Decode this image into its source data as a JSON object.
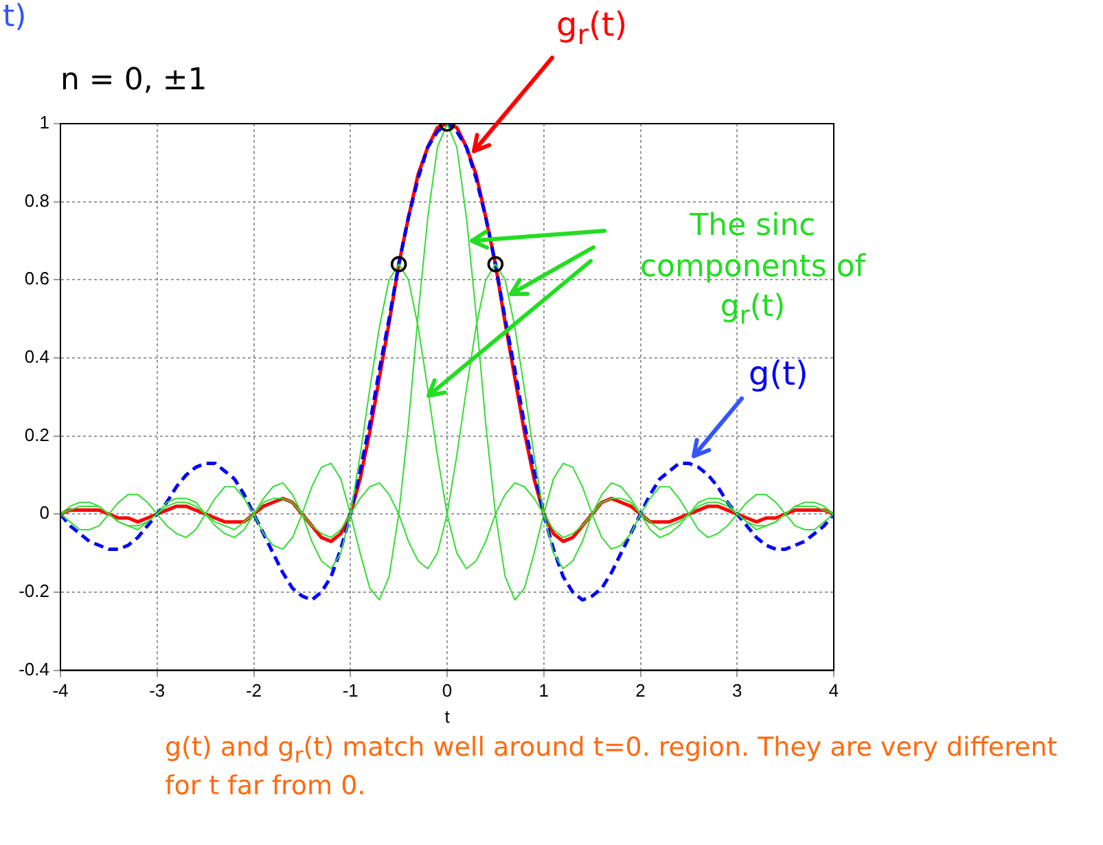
{
  "chart_data": {
    "type": "line",
    "xlabel": "t",
    "x": [
      -4,
      -3.9,
      -3.8,
      -3.7,
      -3.6,
      -3.5,
      -3.4,
      -3.3,
      -3.2,
      -3.1,
      -3,
      -2.9,
      -2.8,
      -2.7,
      -2.6,
      -2.5,
      -2.4,
      -2.3,
      -2.2,
      -2.1,
      -2,
      -1.9,
      -1.8,
      -1.7,
      -1.6,
      -1.5,
      -1.4,
      -1.3,
      -1.2,
      -1.1,
      -1,
      -0.9,
      -0.8,
      -0.7,
      -0.6,
      -0.5,
      -0.4,
      -0.3,
      -0.2,
      -0.1,
      0,
      0.1,
      0.2,
      0.3,
      0.4,
      0.5,
      0.6,
      0.7,
      0.8,
      0.9,
      1,
      1.1,
      1.2,
      1.3,
      1.4,
      1.5,
      1.6,
      1.7,
      1.8,
      1.9,
      2,
      2.1,
      2.2,
      2.3,
      2.4,
      2.5,
      2.6,
      2.7,
      2.8,
      2.9,
      3,
      3.1,
      3.2,
      3.3,
      3.4,
      3.5,
      3.6,
      3.7,
      3.8,
      3.9,
      4
    ],
    "xlim": [
      -4,
      4
    ],
    "xticks": [
      -4,
      -3,
      -2,
      -1,
      0,
      1,
      2,
      3,
      4
    ],
    "ylim": [
      -0.4,
      1
    ],
    "yticks": [
      -0.4,
      -0.2,
      0,
      0.2,
      0.4,
      0.6,
      0.8,
      1
    ],
    "grid": true,
    "legend": false,
    "marker": "none",
    "line_style": "solid",
    "series": [
      {
        "color": "#33dd33",
        "values": [
          0,
          -0.02,
          -0.04,
          -0.04,
          -0.03,
          0,
          0.03,
          0.05,
          0.05,
          0.03,
          0,
          -0.03,
          -0.05,
          -0.06,
          -0.04,
          0,
          0.04,
          0.07,
          0.07,
          0.04,
          0,
          -0.05,
          -0.08,
          -0.09,
          -0.06,
          0,
          0.07,
          0.12,
          0.13,
          0.09,
          0,
          -0.1,
          -0.19,
          -0.22,
          -0.16,
          0,
          0.23,
          0.51,
          0.76,
          0.94,
          1,
          0.94,
          0.76,
          0.51,
          0.23,
          0,
          -0.16,
          -0.22,
          -0.19,
          -0.1,
          0,
          0.09,
          0.13,
          0.12,
          0.07,
          0,
          -0.06,
          -0.09,
          -0.08,
          -0.05,
          0,
          0.04,
          0.07,
          0.07,
          0.04,
          0,
          -0.04,
          -0.06,
          -0.05,
          -0.03,
          0,
          0.03,
          0.05,
          0.05,
          0.03,
          0,
          -0.03,
          -0.04,
          -0.04,
          -0.02,
          0
        ]
      },
      {
        "color": "#33dd33",
        "values": [
          0,
          0.01,
          0.02,
          0.02,
          0.02,
          0,
          -0.02,
          -0.03,
          -0.03,
          -0.02,
          0,
          0.02,
          0.03,
          0.03,
          0.02,
          0,
          -0.02,
          -0.03,
          -0.04,
          -0.02,
          0,
          0.03,
          0.04,
          0.04,
          0.03,
          0,
          -0.03,
          -0.05,
          -0.06,
          -0.04,
          0,
          0.04,
          0.07,
          0.08,
          0.05,
          0,
          -0.07,
          -0.12,
          -0.14,
          -0.1,
          0,
          0.15,
          0.32,
          0.48,
          0.6,
          0.64,
          0.6,
          0.48,
          0.32,
          0.15,
          0,
          -0.1,
          -0.14,
          -0.12,
          -0.07,
          0,
          0.05,
          0.08,
          0.07,
          0.04,
          0,
          -0.04,
          -0.06,
          -0.05,
          -0.03,
          0,
          0.03,
          0.04,
          0.04,
          0.03,
          0,
          -0.02,
          -0.04,
          -0.03,
          -0.02,
          0,
          0.02,
          0.03,
          0.03,
          0.02,
          0
        ]
      },
      {
        "color": "#33dd33",
        "values": [
          0,
          0.02,
          0.03,
          0.03,
          0.02,
          0,
          -0.02,
          -0.03,
          -0.04,
          -0.02,
          0,
          0.03,
          0.04,
          0.04,
          0.03,
          0,
          -0.03,
          -0.05,
          -0.06,
          -0.04,
          0,
          0.04,
          0.07,
          0.08,
          0.05,
          0,
          -0.07,
          -0.12,
          -0.14,
          -0.1,
          0,
          0.15,
          0.32,
          0.48,
          0.6,
          0.64,
          0.6,
          0.48,
          0.32,
          0.15,
          0,
          -0.1,
          -0.14,
          -0.12,
          -0.07,
          0,
          0.05,
          0.08,
          0.07,
          0.04,
          0,
          -0.04,
          -0.06,
          -0.05,
          -0.03,
          0,
          0.03,
          0.04,
          0.04,
          0.03,
          0,
          -0.02,
          -0.04,
          -0.03,
          -0.02,
          0,
          0.02,
          0.03,
          0.03,
          0.02,
          0,
          -0.02,
          -0.03,
          -0.03,
          -0.02,
          0,
          0.02,
          0.02,
          0.02,
          0.01,
          0
        ]
      },
      {
        "name": "g(t)",
        "color": "#0000ff",
        "line_style": "dashed",
        "values": [
          0,
          -0.03,
          -0.05,
          -0.07,
          -0.08,
          -0.09,
          -0.09,
          -0.08,
          -0.06,
          -0.03,
          0,
          0.03,
          0.07,
          0.1,
          0.12,
          0.13,
          0.13,
          0.11,
          0.09,
          0.05,
          0,
          -0.05,
          -0.1,
          -0.15,
          -0.19,
          -0.21,
          -0.22,
          -0.2,
          -0.16,
          -0.09,
          0,
          0.11,
          0.23,
          0.37,
          0.5,
          0.64,
          0.76,
          0.86,
          0.94,
          0.98,
          1,
          0.98,
          0.94,
          0.86,
          0.76,
          0.64,
          0.5,
          0.37,
          0.23,
          0.11,
          0,
          -0.09,
          -0.16,
          -0.2,
          -0.22,
          -0.21,
          -0.19,
          -0.15,
          -0.1,
          -0.05,
          0,
          0.05,
          0.09,
          0.11,
          0.13,
          0.13,
          0.12,
          0.1,
          0.07,
          0.03,
          0,
          -0.03,
          -0.06,
          -0.08,
          -0.09,
          -0.09,
          -0.08,
          -0.07,
          -0.05,
          -0.03,
          0
        ]
      },
      {
        "name": "g$_{r}$(t)",
        "color": "#ff0000",
        "values": [
          0,
          0.01,
          0.01,
          0.01,
          0.01,
          0,
          -0.01,
          -0.01,
          -0.02,
          -0.01,
          0,
          0.01,
          0.02,
          0.02,
          0.01,
          0,
          -0.01,
          -0.02,
          -0.02,
          -0.02,
          0,
          0.02,
          0.03,
          0.04,
          0.03,
          0,
          -0.03,
          -0.06,
          -0.07,
          -0.05,
          0,
          0.09,
          0.21,
          0.35,
          0.49,
          0.64,
          0.76,
          0.87,
          0.94,
          0.99,
          1,
          0.99,
          0.94,
          0.87,
          0.76,
          0.64,
          0.49,
          0.35,
          0.21,
          0.09,
          0,
          -0.05,
          -0.07,
          -0.06,
          -0.03,
          0,
          0.03,
          0.04,
          0.03,
          0.02,
          0,
          -0.02,
          -0.02,
          -0.02,
          -0.01,
          0,
          0.01,
          0.02,
          0.02,
          0.01,
          0,
          -0.01,
          -0.02,
          -0.01,
          -0.01,
          0,
          0.01,
          0.01,
          0.01,
          0.01,
          0
        ]
      },
      {
        "type": "scatter",
        "marker": "circle",
        "color": "#000000",
        "x": [
          -0.5,
          0,
          0.5
        ],
        "values": [
          0.64,
          1,
          0.64
        ]
      }
    ],
    "annotations": [
      "t)",
      "n = 0, ±1",
      {
        "text": "The sinc components of g$_{r}$(t)",
        "x": 0.2,
        "y": 0.7
      },
      "g(t) and g$_{r}$(t) match well around t=0. region. They are very different for t far from 0."
    ]
  }
}
